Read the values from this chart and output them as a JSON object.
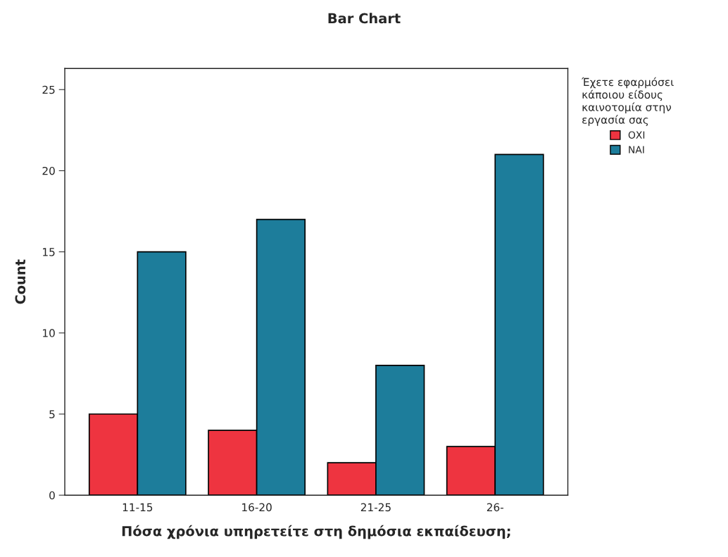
{
  "chart_data": {
    "type": "bar",
    "title": "Bar Chart",
    "xlabel": "Πόσα χρόνια υπηρετείτε στη δημόσια εκπαίδευση;",
    "ylabel": "Count",
    "categories": [
      "11-15",
      "16-20",
      "21-25",
      "26-"
    ],
    "series": [
      {
        "name": "ΟΧΙ",
        "color": "#ee3440",
        "values": [
          5,
          4,
          2,
          3
        ]
      },
      {
        "name": "ΝΑΙ",
        "color": "#1d7d9b",
        "values": [
          15,
          17,
          8,
          21
        ]
      }
    ],
    "legend_title": "Έχετε εφαρμόσει\nκάποιου είδους\nκαινοτομία στην\nεργασία σας",
    "legend": "right",
    "grid": false,
    "ylim": [
      0,
      26.3
    ],
    "yticks": [
      0,
      5,
      10,
      15,
      20,
      25
    ]
  }
}
